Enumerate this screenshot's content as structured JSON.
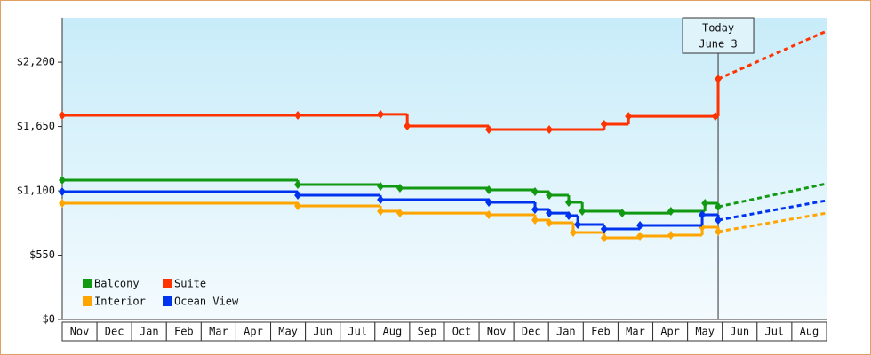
{
  "chart_data": {
    "type": "step-line",
    "categories": [
      "Nov",
      "Dec",
      "Jan",
      "Feb",
      "Mar",
      "Apr",
      "May",
      "Jun",
      "Jul",
      "Aug",
      "Sep",
      "Oct",
      "Nov",
      "Dec",
      "Jan",
      "Feb",
      "Mar",
      "Apr",
      "May",
      "Jun",
      "Jul",
      "Aug"
    ],
    "xlim": [
      0,
      22
    ],
    "ylim": [
      0,
      2580
    ],
    "yticks": [
      {
        "value": 0,
        "label": "$0"
      },
      {
        "value": 550,
        "label": "$550"
      },
      {
        "value": 1100,
        "label": "$1,100"
      },
      {
        "value": 1650,
        "label": "$1,650"
      },
      {
        "value": 2200,
        "label": "$2,200"
      }
    ],
    "today": {
      "x": 18.88,
      "label": "Today",
      "date": "June 3"
    },
    "legend": "lower left",
    "series": [
      {
        "name": "Balcony",
        "color": "#119911",
        "x": [
          0,
          6.78,
          9.16,
          9.72,
          12.28,
          13.61,
          14.02,
          14.58,
          14.97,
          16.12,
          17.52,
          18.5,
          18.88
        ],
        "values": [
          1191,
          1153,
          1138,
          1123,
          1108,
          1093,
          1062,
          1002,
          926,
          910,
          926,
          994,
          964
        ],
        "forecast": 1161
      },
      {
        "name": "Suite",
        "color": "#ff3300",
        "x": [
          0,
          6.78,
          9.16,
          9.93,
          12.28,
          14.02,
          15.6,
          16.3,
          18.8,
          18.88
        ],
        "values": [
          1745,
          1745,
          1754,
          1654,
          1624,
          1624,
          1669,
          1737,
          1737,
          2056
        ],
        "forecast": 2466
      },
      {
        "name": "Interior",
        "color": "#ffa500",
        "x": [
          0,
          6.78,
          9.16,
          9.72,
          12.28,
          13.61,
          14.02,
          14.71,
          15.6,
          16.63,
          17.52,
          18.42,
          18.88
        ],
        "values": [
          994,
          971,
          926,
          910,
          895,
          850,
          827,
          744,
          698,
          713,
          721,
          789,
          751
        ],
        "forecast": 910
      },
      {
        "name": "Ocean View",
        "color": "#0033ee",
        "x": [
          0,
          6.78,
          9.16,
          12.28,
          13.61,
          14.02,
          14.58,
          14.84,
          15.6,
          16.63,
          18.42,
          18.88
        ],
        "values": [
          1093,
          1062,
          1024,
          1002,
          941,
          910,
          888,
          812,
          774,
          804,
          895,
          850
        ],
        "forecast": 1017
      }
    ]
  }
}
